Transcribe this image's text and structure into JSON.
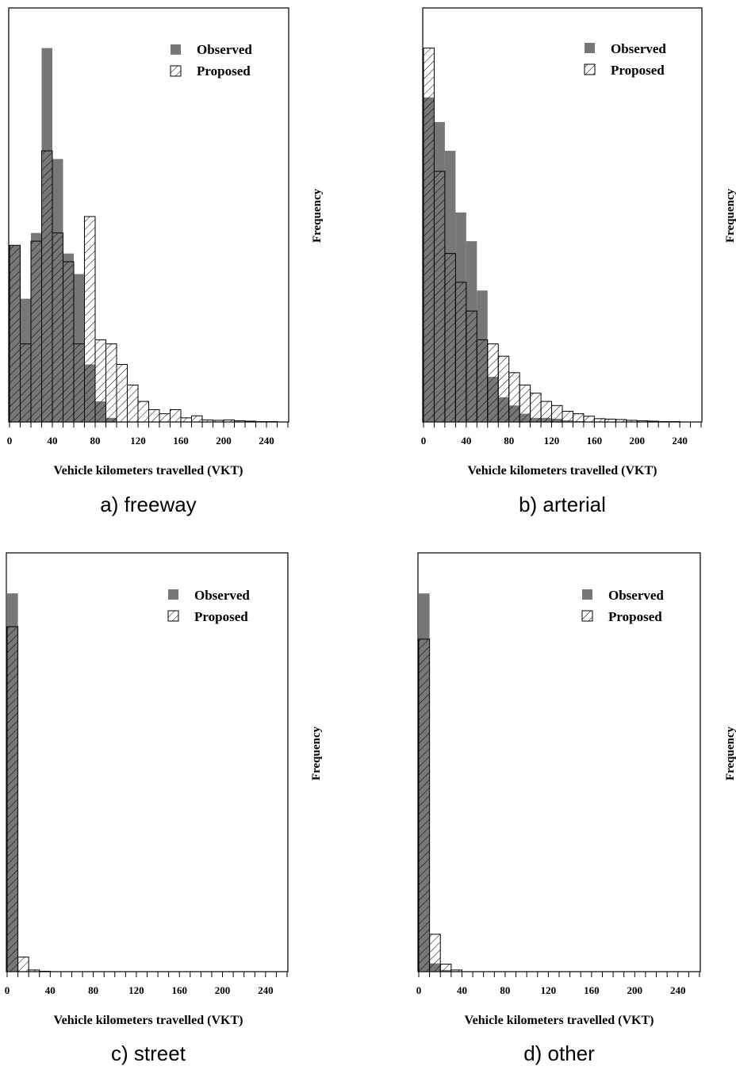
{
  "chart_data": [
    {
      "type": "bar",
      "caption": "a) freeway",
      "xlabel": "Vehicle kilometers travelled (VKT)",
      "ylabel": "Frequency",
      "legend": {
        "observed": "Observed",
        "proposed": "Proposed",
        "position": "top-right"
      },
      "xlim": [
        0,
        260
      ],
      "ylim": [
        0,
        1.0
      ],
      "xticks": [
        0,
        40,
        80,
        120,
        160,
        200,
        240
      ],
      "bin_width": 10,
      "series": [
        {
          "name": "Observed",
          "style": "solid-gray",
          "color": "#777777",
          "values": [
            0.43,
            0.3,
            0.46,
            0.91,
            0.64,
            0.41,
            0.36,
            0.14,
            0.05,
            0.01,
            0,
            0,
            0,
            0,
            0,
            0,
            0,
            0,
            0,
            0,
            0,
            0,
            0,
            0,
            0,
            0
          ]
        },
        {
          "name": "Proposed",
          "style": "hatched",
          "color": "#ffffff",
          "values": [
            0.43,
            0.19,
            0.44,
            0.66,
            0.46,
            0.39,
            0.19,
            0.5,
            0.2,
            0.19,
            0.14,
            0.09,
            0.05,
            0.03,
            0.02,
            0.03,
            0.01,
            0.015,
            0.005,
            0.004,
            0.005,
            0.003,
            0.002,
            0.001,
            0.001,
            0
          ]
        }
      ]
    },
    {
      "type": "bar",
      "caption": "b) arterial",
      "xlabel": "Vehicle kilometers travelled (VKT)",
      "ylabel": "Frequency",
      "legend": {
        "observed": "Observed",
        "proposed": "Proposed",
        "position": "top-right"
      },
      "xlim": [
        0,
        260
      ],
      "ylim": [
        0,
        1.0
      ],
      "xticks": [
        0,
        40,
        80,
        120,
        160,
        200,
        240
      ],
      "bin_width": 10,
      "series": [
        {
          "name": "Observed",
          "style": "solid-gray",
          "color": "#777777",
          "values": [
            0.79,
            0.73,
            0.66,
            0.51,
            0.44,
            0.32,
            0.11,
            0.06,
            0.04,
            0.02,
            0.01,
            0.01,
            0.008,
            0.004,
            0.002,
            0.001,
            0,
            0,
            0,
            0,
            0,
            0,
            0,
            0,
            0,
            0
          ]
        },
        {
          "name": "Proposed",
          "style": "hatched",
          "color": "#ffffff",
          "values": [
            0.91,
            0.61,
            0.41,
            0.34,
            0.27,
            0.2,
            0.19,
            0.16,
            0.12,
            0.09,
            0.07,
            0.05,
            0.04,
            0.026,
            0.02,
            0.014,
            0.008,
            0.007,
            0.006,
            0.004,
            0.003,
            0.002,
            0.001,
            0.001,
            0,
            0
          ]
        }
      ]
    },
    {
      "type": "bar",
      "caption": "c) street",
      "xlabel": "Vehicle kilometers travelled (VKT)",
      "ylabel": "Frequency",
      "legend": {
        "observed": "Observed",
        "proposed": "Proposed",
        "position": "top-right"
      },
      "xlim": [
        0,
        260
      ],
      "ylim": [
        0,
        1.0
      ],
      "xticks": [
        0,
        40,
        80,
        120,
        160,
        200,
        240
      ],
      "bin_width": 10,
      "series": [
        {
          "name": "Observed",
          "style": "solid-gray",
          "color": "#777777",
          "values": [
            0.91,
            0,
            0,
            0,
            0,
            0,
            0,
            0,
            0,
            0,
            0,
            0,
            0,
            0,
            0,
            0,
            0,
            0,
            0,
            0,
            0,
            0,
            0,
            0,
            0,
            0
          ]
        },
        {
          "name": "Proposed",
          "style": "hatched",
          "color": "#ffffff",
          "values": [
            0.83,
            0.035,
            0.004,
            0.001,
            0,
            0,
            0,
            0,
            0,
            0,
            0,
            0,
            0,
            0,
            0,
            0,
            0,
            0,
            0,
            0,
            0,
            0,
            0,
            0,
            0,
            0
          ]
        }
      ]
    },
    {
      "type": "bar",
      "caption": "d) other",
      "xlabel": "Vehicle kilometers travelled (VKT)",
      "ylabel": "Frequency",
      "legend": {
        "observed": "Observed",
        "proposed": "Proposed",
        "position": "top-right"
      },
      "xlim": [
        0,
        260
      ],
      "ylim": [
        0,
        1.0
      ],
      "xticks": [
        0,
        40,
        80,
        120,
        160,
        200,
        240
      ],
      "bin_width": 10,
      "series": [
        {
          "name": "Observed",
          "style": "solid-gray",
          "color": "#777777",
          "values": [
            0.91,
            0.02,
            0.004,
            0,
            0,
            0,
            0,
            0,
            0,
            0,
            0,
            0,
            0,
            0,
            0,
            0,
            0,
            0,
            0,
            0,
            0,
            0,
            0,
            0,
            0,
            0
          ]
        },
        {
          "name": "Proposed",
          "style": "hatched",
          "color": "#ffffff",
          "values": [
            0.8,
            0.09,
            0.018,
            0.004,
            0,
            0,
            0,
            0,
            0,
            0,
            0,
            0,
            0,
            0,
            0,
            0,
            0,
            0,
            0,
            0,
            0,
            0,
            0,
            0,
            0,
            0
          ]
        }
      ]
    }
  ]
}
